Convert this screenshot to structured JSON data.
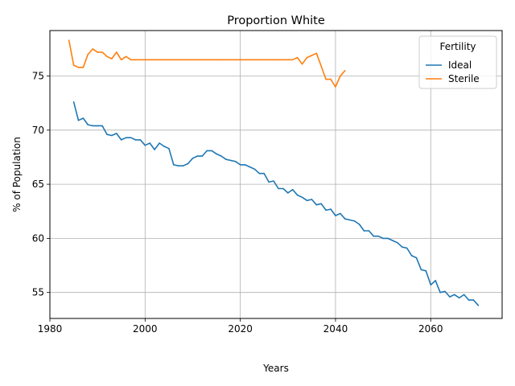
{
  "chart_data": {
    "type": "line",
    "title": "Proportion White",
    "xlabel": "Years",
    "ylabel": "% of Population",
    "xlim": [
      1980,
      2075
    ],
    "ylim": [
      52.6,
      79.2
    ],
    "xticks": [
      1980,
      2000,
      2020,
      2040,
      2060
    ],
    "yticks": [
      55,
      60,
      65,
      70,
      75
    ],
    "grid": true,
    "legend": {
      "title": "Fertility",
      "position": "top-right"
    },
    "series": [
      {
        "name": "Ideal",
        "color": "#1f77b4",
        "x": [
          1985,
          1986,
          1987,
          1988,
          1989,
          1990,
          1991,
          1992,
          1993,
          1994,
          1995,
          1996,
          1997,
          1998,
          1999,
          2000,
          2001,
          2002,
          2003,
          2004,
          2005,
          2006,
          2007,
          2008,
          2009,
          2010,
          2011,
          2012,
          2013,
          2014,
          2015,
          2016,
          2017,
          2018,
          2019,
          2020,
          2021,
          2022,
          2023,
          2024,
          2025,
          2026,
          2027,
          2028,
          2029,
          2030,
          2031,
          2032,
          2033,
          2034,
          2035,
          2036,
          2037,
          2038,
          2039,
          2040,
          2041,
          2042,
          2043,
          2044,
          2045,
          2046,
          2047,
          2048,
          2049,
          2050,
          2051,
          2052,
          2053,
          2054,
          2055,
          2056,
          2057,
          2058,
          2059,
          2060,
          2061,
          2062,
          2063,
          2064,
          2065,
          2066,
          2067,
          2068,
          2069,
          2070
        ],
        "values": [
          72.6,
          70.9,
          71.1,
          70.5,
          70.4,
          70.4,
          70.4,
          69.6,
          69.5,
          69.7,
          69.1,
          69.3,
          69.3,
          69.1,
          69.1,
          68.6,
          68.8,
          68.2,
          68.8,
          68.5,
          68.3,
          66.8,
          66.7,
          66.7,
          66.9,
          67.4,
          67.6,
          67.6,
          68.1,
          68.1,
          67.8,
          67.6,
          67.3,
          67.2,
          67.1,
          66.8,
          66.8,
          66.6,
          66.4,
          66.0,
          66.0,
          65.2,
          65.3,
          64.6,
          64.6,
          64.2,
          64.5,
          64.0,
          63.8,
          63.5,
          63.6,
          63.1,
          63.2,
          62.6,
          62.7,
          62.1,
          62.3,
          61.8,
          61.7,
          61.6,
          61.3,
          60.7,
          60.7,
          60.2,
          60.2,
          60.0,
          60.0,
          59.8,
          59.6,
          59.2,
          59.1,
          58.4,
          58.2,
          57.1,
          57.0,
          55.7,
          56.1,
          55.0,
          55.1,
          54.6,
          54.8,
          54.5,
          54.8,
          54.3,
          54.3,
          53.8
        ]
      },
      {
        "name": "Sterile",
        "color": "#ff7f0e",
        "x": [
          1984,
          1985,
          1986,
          1987,
          1988,
          1989,
          1990,
          1991,
          1992,
          1993,
          1994,
          1995,
          1996,
          1997,
          1998,
          1999,
          2000,
          2001,
          2002,
          2003,
          2004,
          2005,
          2006,
          2007,
          2008,
          2009,
          2010,
          2011,
          2012,
          2013,
          2014,
          2015,
          2016,
          2017,
          2018,
          2019,
          2020,
          2021,
          2022,
          2023,
          2024,
          2025,
          2026,
          2027,
          2028,
          2029,
          2030,
          2031,
          2032,
          2033,
          2034,
          2035,
          2036,
          2037,
          2038,
          2039,
          2040,
          2041,
          2042
        ],
        "values": [
          78.3,
          76.0,
          75.8,
          75.8,
          77.0,
          77.5,
          77.2,
          77.2,
          76.8,
          76.6,
          77.2,
          76.5,
          76.8,
          76.5,
          76.5,
          76.5,
          76.5,
          76.5,
          76.5,
          76.5,
          76.5,
          76.5,
          76.5,
          76.5,
          76.5,
          76.5,
          76.5,
          76.5,
          76.5,
          76.5,
          76.5,
          76.5,
          76.5,
          76.5,
          76.5,
          76.5,
          76.5,
          76.5,
          76.5,
          76.5,
          76.5,
          76.5,
          76.5,
          76.5,
          76.5,
          76.5,
          76.5,
          76.5,
          76.7,
          76.1,
          76.7,
          76.9,
          77.1,
          75.9,
          74.7,
          74.7,
          74.0,
          75.0,
          75.5
        ]
      }
    ]
  }
}
